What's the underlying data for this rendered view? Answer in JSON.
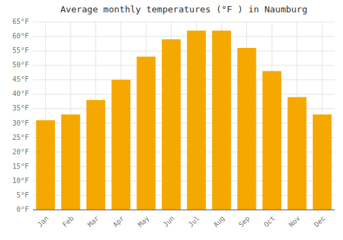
{
  "chart_data": {
    "type": "bar",
    "title": "Average monthly temperatures (°F ) in Naumburg",
    "categories": [
      "Jan",
      "Feb",
      "Mar",
      "Apr",
      "May",
      "Jun",
      "Jul",
      "Aug",
      "Sep",
      "Oct",
      "Nov",
      "Dec"
    ],
    "values": [
      31,
      33,
      38,
      45,
      53,
      59,
      62,
      62,
      56,
      48,
      39,
      33
    ],
    "color": "#F5A800",
    "ylim": [
      0,
      65
    ],
    "yticks": [
      {
        "value": 0,
        "label": "0°F"
      },
      {
        "value": 5,
        "label": "5°F"
      },
      {
        "value": 10,
        "label": "10°F"
      },
      {
        "value": 15,
        "label": "15°F"
      },
      {
        "value": 20,
        "label": "20°F"
      },
      {
        "value": 25,
        "label": "25°F"
      },
      {
        "value": 30,
        "label": "30°F"
      },
      {
        "value": 35,
        "label": "35°F"
      },
      {
        "value": 40,
        "label": "40°F"
      },
      {
        "value": 45,
        "label": "45°F"
      },
      {
        "value": 50,
        "label": "50°F"
      },
      {
        "value": 55,
        "label": "55°F"
      },
      {
        "value": 60,
        "label": "60°F"
      },
      {
        "value": 65,
        "label": "65°F"
      }
    ],
    "grid": true
  }
}
